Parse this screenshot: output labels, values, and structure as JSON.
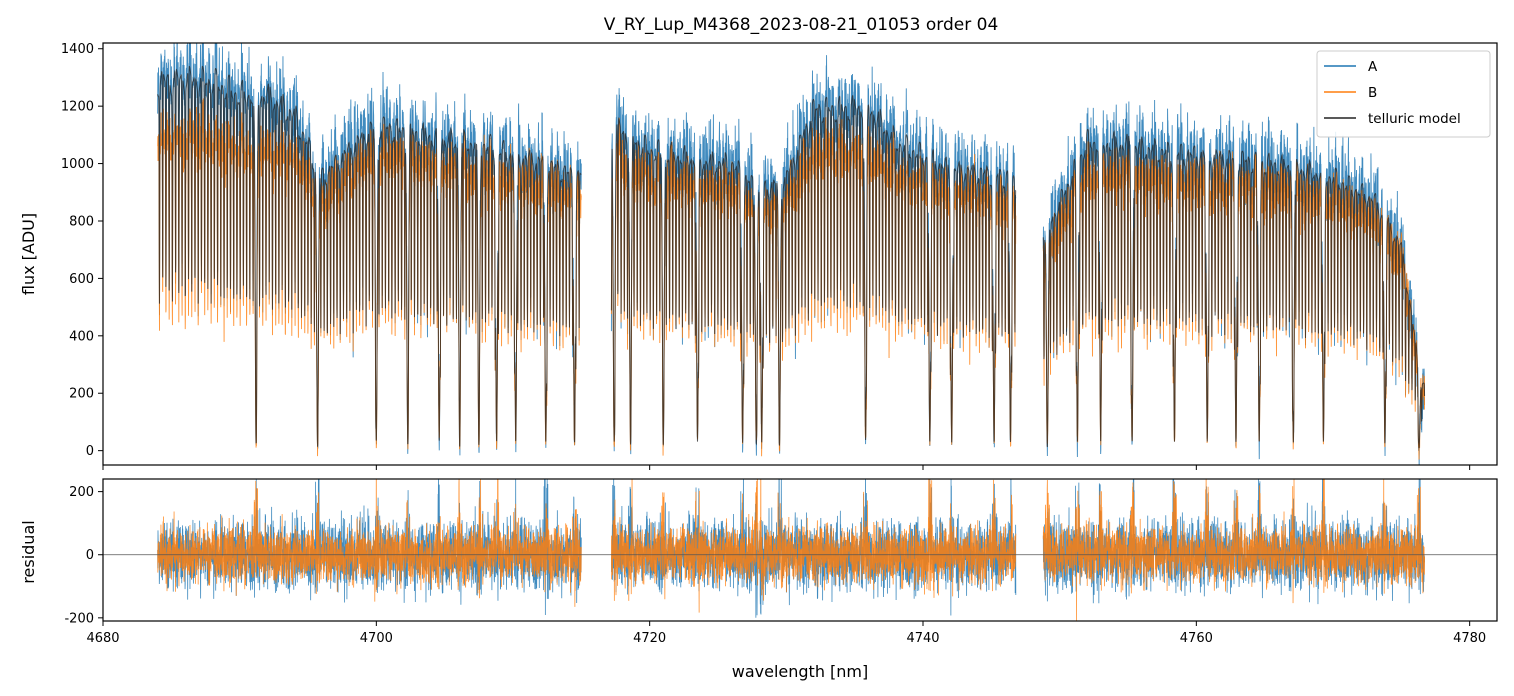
{
  "title": "V_RY_Lup_M4368_2023-08-21_01053  order 04",
  "colors": {
    "A": "#1f77b4",
    "B": "#ff7f0e",
    "model": "#222222",
    "zero": "#555555"
  },
  "chart_data": [
    {
      "type": "line",
      "title": "V_RY_Lup_M4368_2023-08-21_01053  order 04",
      "xlabel": "",
      "ylabel": "flux [ADU]",
      "xlim": [
        4680,
        4782
      ],
      "ylim": [
        -50,
        1420
      ],
      "yticks": [
        0,
        200,
        400,
        600,
        800,
        1000,
        1200,
        1400
      ],
      "grid": false,
      "legend": "top-right",
      "legend_entries": [
        "A",
        "B",
        "telluric model"
      ],
      "segments": [
        [
          4684.0,
          4715.0
        ],
        [
          4717.2,
          4746.8
        ],
        [
          4748.8,
          4776.7
        ]
      ],
      "series": [
        {
          "name": "A",
          "x": [
            4684.2,
            4686,
            4688,
            4690,
            4692,
            4694,
            4696,
            4698,
            4700,
            4702,
            4704,
            4706,
            4708,
            4710,
            4712,
            4714.8,
            4717.3,
            4720,
            4722,
            4724,
            4726,
            4728,
            4730,
            4732,
            4734,
            4736,
            4738,
            4740,
            4742,
            4744,
            4746.5,
            4749,
            4752,
            4755,
            4758,
            4761,
            4764,
            4767,
            4770,
            4773,
            4775,
            4776.5
          ],
          "values": [
            1350,
            1380,
            1370,
            1300,
            1300,
            1230,
            1000,
            1100,
            1200,
            1180,
            1150,
            1130,
            1120,
            1080,
            1060,
            1000,
            1200,
            1100,
            1080,
            1060,
            1050,
            950,
            1000,
            1250,
            1250,
            1260,
            1130,
            1080,
            1030,
            1020,
            1000,
            800,
            1130,
            1120,
            1090,
            1080,
            1060,
            1040,
            1000,
            920,
            750,
            250
          ]
        },
        {
          "name": "B",
          "x": [
            4684.2,
            4686,
            4688,
            4690,
            4692,
            4694,
            4696,
            4698,
            4700,
            4702,
            4704,
            4706,
            4708,
            4710,
            4712,
            4714.8,
            4717.3,
            4720,
            4722,
            4724,
            4726,
            4728,
            4730,
            4732,
            4734,
            4736,
            4738,
            4740,
            4742,
            4744,
            4746.5,
            4749,
            4752,
            4755,
            4758,
            4761,
            4764,
            4767,
            4770,
            4773,
            4775,
            4776.5
          ],
          "values": [
            1140,
            1140,
            1130,
            1090,
            1100,
            1060,
            900,
            1000,
            1080,
            1060,
            1040,
            1020,
            1010,
            980,
            960,
            900,
            1060,
            990,
            980,
            960,
            950,
            860,
            900,
            1070,
            1070,
            1080,
            1000,
            960,
            930,
            920,
            900,
            720,
            1010,
            1000,
            980,
            970,
            960,
            940,
            900,
            840,
            700,
            220
          ]
        },
        {
          "name": "telluric model",
          "x": [
            4684.2,
            4686,
            4688,
            4690,
            4692,
            4694,
            4696,
            4698,
            4700,
            4702,
            4704,
            4706,
            4708,
            4710,
            4712,
            4714.8,
            4717.3,
            4720,
            4722,
            4724,
            4726,
            4728,
            4730,
            4732,
            4734,
            4736,
            4738,
            4740,
            4742,
            4744,
            4746.5,
            4749,
            4752,
            4755,
            4758,
            4761,
            4764,
            4767,
            4770,
            4773,
            4775,
            4776.5
          ],
          "values": [
            1340,
            1350,
            1340,
            1290,
            1290,
            1220,
            990,
            1090,
            1180,
            1160,
            1140,
            1120,
            1110,
            1070,
            1050,
            990,
            1180,
            1090,
            1070,
            1050,
            1040,
            940,
            990,
            1240,
            1240,
            1250,
            1120,
            1070,
            1020,
            1010,
            990,
            790,
            1120,
            1110,
            1080,
            1070,
            1050,
            1030,
            990,
            910,
            740,
            240
          ]
        }
      ],
      "absorption_lines": [
        4691.2,
        4695.7,
        4700.0,
        4702.3,
        4704.6,
        4706.1,
        4707.5,
        4708.8,
        4710.2,
        4712.4,
        4714.5,
        4717.4,
        4718.6,
        4721.0,
        4723.5,
        4726.8,
        4727.8,
        4728.2,
        4729.5,
        4735.8,
        4740.5,
        4742.1,
        4745.2,
        4746.4,
        4749.1,
        4751.3,
        4753.0,
        4755.3,
        4758.4,
        4760.8,
        4762.9,
        4764.6,
        4767.1,
        4769.3,
        4773.8,
        4776.3
      ]
    },
    {
      "type": "line",
      "title": "",
      "xlabel": "wavelength [nm]",
      "ylabel": "residual",
      "xlim": [
        4680,
        4782
      ],
      "ylim": [
        -210,
        240
      ],
      "xticks": [
        4680,
        4700,
        4720,
        4740,
        4760,
        4780
      ],
      "yticks": [
        -200,
        0,
        200
      ],
      "reference_line": 0,
      "series": [
        {
          "name": "A",
          "noise_rms": 55
        },
        {
          "name": "B",
          "noise_rms": 45
        }
      ]
    }
  ]
}
